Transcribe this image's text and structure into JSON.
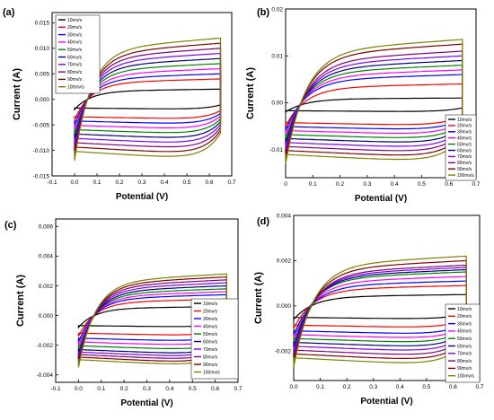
{
  "panel_colors": [
    "#000000",
    "#ff0000",
    "#0000ff",
    "#ff00ff",
    "#008000",
    "#000080",
    "#7f00ff",
    "#800080",
    "#800000",
    "#808000"
  ],
  "chart_data": [
    {
      "panel": "(a)",
      "type": "line",
      "xlabel": "Potential (V)",
      "ylabel": "Current (A)",
      "xlim": [
        -0.1,
        0.7
      ],
      "ylim": [
        -0.015,
        0.017
      ],
      "xticks": [
        "-0.1",
        "0.0",
        "0.1",
        "0.2",
        "0.3",
        "0.4",
        "0.5",
        "0.6",
        "0.7"
      ],
      "yticks": [
        "-0.015",
        "-0.010",
        "-0.005",
        "0.000",
        "0.005",
        "0.010",
        "0.015"
      ],
      "ytick_values": [
        -0.015,
        -0.01,
        -0.005,
        0.0,
        0.005,
        0.01,
        0.015
      ],
      "legend_position": "top-left",
      "series": [
        {
          "name": "10mv/s",
          "x_start": 0.0,
          "x_end": 0.65,
          "anodic_current": 0.002,
          "cathodic_current": -0.002
        },
        {
          "name": "20mv/s",
          "x_start": 0.0,
          "x_end": 0.65,
          "anodic_current": 0.004,
          "cathodic_current": -0.004
        },
        {
          "name": "30mv/s",
          "x_start": 0.0,
          "x_end": 0.65,
          "anodic_current": 0.005,
          "cathodic_current": -0.005
        },
        {
          "name": "40mv/s",
          "x_start": 0.0,
          "x_end": 0.65,
          "anodic_current": 0.006,
          "cathodic_current": -0.006
        },
        {
          "name": "50mv/s",
          "x_start": 0.0,
          "x_end": 0.65,
          "anodic_current": 0.007,
          "cathodic_current": -0.007
        },
        {
          "name": "60mv/s",
          "x_start": 0.0,
          "x_end": 0.65,
          "anodic_current": 0.008,
          "cathodic_current": -0.008
        },
        {
          "name": "70mv/s",
          "x_start": 0.0,
          "x_end": 0.65,
          "anodic_current": 0.009,
          "cathodic_current": -0.009
        },
        {
          "name": "80mv/s",
          "x_start": 0.0,
          "x_end": 0.65,
          "anodic_current": 0.01,
          "cathodic_current": -0.01
        },
        {
          "name": "90mv/s",
          "x_start": 0.0,
          "x_end": 0.65,
          "anodic_current": 0.011,
          "cathodic_current": -0.011
        },
        {
          "name": "100mv/s",
          "x_start": 0.0,
          "x_end": 0.65,
          "anodic_current": 0.012,
          "cathodic_current": -0.012
        }
      ]
    },
    {
      "panel": "(b)",
      "type": "line",
      "xlabel": "Potential (V)",
      "ylabel": "Current (A)",
      "xlim": [
        0,
        0.7
      ],
      "ylim": [
        -0.016,
        0.02
      ],
      "xticks": [
        "0",
        "0.1",
        "0.2",
        "0.3",
        "0.4",
        "0.5",
        "0.6",
        "0.7"
      ],
      "yticks": [
        "-0.01",
        "0.00",
        "0.01",
        "0.02"
      ],
      "ytick_values": [
        -0.01,
        0.0,
        0.01,
        0.02
      ],
      "legend_position": "bottom-right",
      "series": [
        {
          "name": "10mv/s",
          "x_start": 0.0,
          "x_end": 0.65,
          "anodic_current": 0.001,
          "cathodic_current": -0.002
        },
        {
          "name": "20mv/s",
          "x_start": 0.0,
          "x_end": 0.65,
          "anodic_current": 0.004,
          "cathodic_current": -0.005
        },
        {
          "name": "30mv/s",
          "x_start": 0.0,
          "x_end": 0.65,
          "anodic_current": 0.006,
          "cathodic_current": -0.006
        },
        {
          "name": "40mv/s",
          "x_start": 0.0,
          "x_end": 0.65,
          "anodic_current": 0.007,
          "cathodic_current": -0.007
        },
        {
          "name": "50mv/s",
          "x_start": 0.0,
          "x_end": 0.65,
          "anodic_current": 0.008,
          "cathodic_current": -0.008
        },
        {
          "name": "60mv/s",
          "x_start": 0.0,
          "x_end": 0.65,
          "anodic_current": 0.009,
          "cathodic_current": -0.009
        },
        {
          "name": "70mv/s",
          "x_start": 0.0,
          "x_end": 0.65,
          "anodic_current": 0.01,
          "cathodic_current": -0.01
        },
        {
          "name": "80mv/s",
          "x_start": 0.0,
          "x_end": 0.65,
          "anodic_current": 0.011,
          "cathodic_current": -0.011
        },
        {
          "name": "90mv/s",
          "x_start": 0.0,
          "x_end": 0.65,
          "anodic_current": 0.0125,
          "cathodic_current": -0.012
        },
        {
          "name": "100mv/s",
          "x_start": 0.0,
          "x_end": 0.65,
          "anodic_current": 0.0135,
          "cathodic_current": -0.013
        }
      ]
    },
    {
      "panel": "(c)",
      "type": "line",
      "xlabel": "Potential (V)",
      "ylabel": "Current (A)",
      "xlim": [
        -0.1,
        0.7
      ],
      "ylim": [
        -0.0045,
        0.0065
      ],
      "xticks": [
        "-0.1",
        "0.0",
        "0.1",
        "0.2",
        "0.3",
        "0.4",
        "0.5",
        "0.6",
        "0.7"
      ],
      "yticks": [
        "-0.004",
        "-0.002",
        "0.000",
        "0.002",
        "0.004",
        "0.006"
      ],
      "ytick_values": [
        -0.004,
        -0.002,
        0.0,
        0.002,
        0.004,
        0.006
      ],
      "legend_position": "bottom-right",
      "series": [
        {
          "name": "10mv/s",
          "x_start": 0.0,
          "x_end": 0.65,
          "anodic_current": 0.0006,
          "cathodic_current": -0.0008
        },
        {
          "name": "20mv/s",
          "x_start": 0.0,
          "x_end": 0.65,
          "anodic_current": 0.0011,
          "cathodic_current": -0.0014
        },
        {
          "name": "30mv/s",
          "x_start": 0.0,
          "x_end": 0.65,
          "anodic_current": 0.0014,
          "cathodic_current": -0.0018
        },
        {
          "name": "40mv/s",
          "x_start": 0.0,
          "x_end": 0.65,
          "anodic_current": 0.0016,
          "cathodic_current": -0.0021
        },
        {
          "name": "50mv/s",
          "x_start": 0.0,
          "x_end": 0.65,
          "anodic_current": 0.0018,
          "cathodic_current": -0.0024
        },
        {
          "name": "60mv/s",
          "x_start": 0.0,
          "x_end": 0.65,
          "anodic_current": 0.002,
          "cathodic_current": -0.0027
        },
        {
          "name": "70mv/s",
          "x_start": 0.0,
          "x_end": 0.65,
          "anodic_current": 0.0022,
          "cathodic_current": -0.0029
        },
        {
          "name": "80mv/s",
          "x_start": 0.0,
          "x_end": 0.65,
          "anodic_current": 0.0024,
          "cathodic_current": -0.0031
        },
        {
          "name": "90mv/s",
          "x_start": 0.0,
          "x_end": 0.65,
          "anodic_current": 0.0026,
          "cathodic_current": -0.0033
        },
        {
          "name": "100mv/s",
          "x_start": 0.0,
          "x_end": 0.65,
          "anodic_current": 0.0028,
          "cathodic_current": -0.0035
        }
      ]
    },
    {
      "panel": "(d)",
      "type": "line",
      "xlabel": "Potential (V)",
      "ylabel": "Current (A)",
      "xlim": [
        0,
        0.7
      ],
      "ylim": [
        -0.0033,
        0.004
      ],
      "xticks": [
        "0.0",
        "0.1",
        "0.2",
        "0.3",
        "0.4",
        "0.5",
        "0.6",
        "0.7"
      ],
      "yticks": [
        "-0.002",
        "0.000",
        "0.002",
        "0.004"
      ],
      "ytick_values": [
        -0.002,
        0.0,
        0.002,
        0.004
      ],
      "legend_position": "bottom-right",
      "series": [
        {
          "name": "10mv/s",
          "x_start": 0.0,
          "x_end": 0.65,
          "anodic_current": 0.0005,
          "cathodic_current": -0.0006
        },
        {
          "name": "20mv/s",
          "x_start": 0.0,
          "x_end": 0.65,
          "anodic_current": 0.0009,
          "cathodic_current": -0.001
        },
        {
          "name": "30mv/s",
          "x_start": 0.0,
          "x_end": 0.65,
          "anodic_current": 0.0011,
          "cathodic_current": -0.0013
        },
        {
          "name": "40mv/s",
          "x_start": 0.0,
          "x_end": 0.65,
          "anodic_current": 0.0013,
          "cathodic_current": -0.0015
        },
        {
          "name": "50mv/s",
          "x_start": 0.0,
          "x_end": 0.65,
          "anodic_current": 0.0015,
          "cathodic_current": -0.0017
        },
        {
          "name": "60mv/s",
          "x_start": 0.0,
          "x_end": 0.65,
          "anodic_current": 0.0016,
          "cathodic_current": -0.0019
        },
        {
          "name": "70mv/s",
          "x_start": 0.0,
          "x_end": 0.65,
          "anodic_current": 0.0017,
          "cathodic_current": -0.0021
        },
        {
          "name": "80mv/s",
          "x_start": 0.0,
          "x_end": 0.65,
          "anodic_current": 0.0018,
          "cathodic_current": -0.0023
        },
        {
          "name": "90mv/s",
          "x_start": 0.0,
          "x_end": 0.65,
          "anodic_current": 0.002,
          "cathodic_current": -0.0025
        },
        {
          "name": "100mv/s",
          "x_start": 0.0,
          "x_end": 0.65,
          "anodic_current": 0.0022,
          "cathodic_current": -0.0027
        }
      ]
    }
  ]
}
